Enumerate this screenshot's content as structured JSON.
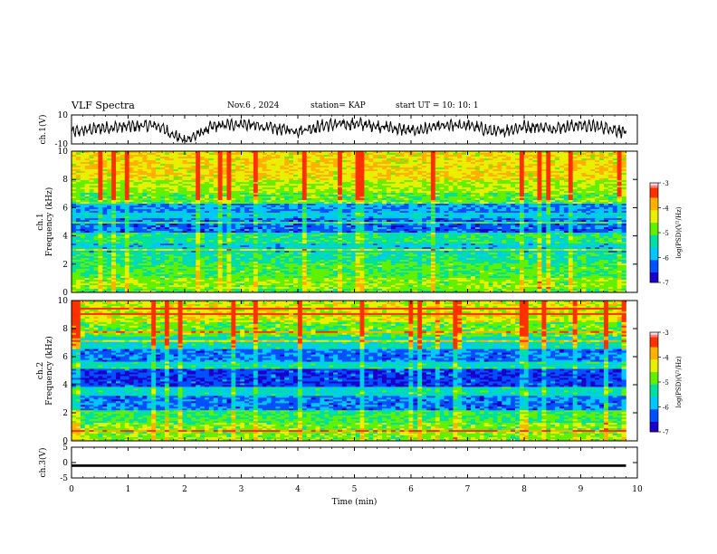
{
  "header": {
    "title": "VLF Spectra",
    "date": "Nov.6 , 2024",
    "station": "station= KAP",
    "start": "start UT = 10: 10: 1"
  },
  "colors": {
    "colormap": [
      "#1a00c8",
      "#0050ff",
      "#00c8ff",
      "#00e0a0",
      "#60f000",
      "#e8f000",
      "#ffb000",
      "#ff3000",
      "#ffffff"
    ],
    "trace": "#000000"
  },
  "chart_data": [
    {
      "id": "ch1-waveform",
      "type": "line",
      "ylabel": "ch.1(V)",
      "ylim": [
        -10,
        10
      ],
      "yticks": [
        "10",
        "-10"
      ],
      "x_range_min": [
        0,
        9.8
      ],
      "note_series": "waveform oscillating between approx. -6 and 8 V",
      "x": [
        0,
        0.5,
        1,
        1.5,
        2,
        2.5,
        3,
        3.5,
        4,
        4.5,
        5,
        5.5,
        6,
        6.5,
        7,
        7.5,
        8,
        8.5,
        9,
        9.5,
        9.8
      ],
      "y": [
        -2,
        1,
        2,
        3,
        -8,
        2,
        4,
        1,
        -1,
        3,
        4,
        2,
        -1,
        2,
        3,
        -2,
        2,
        1,
        3,
        1,
        -2
      ]
    },
    {
      "id": "ch1-spectrogram",
      "type": "heatmap",
      "ylabel": "ch.1\nFrequency (kHz)",
      "ylim": [
        0,
        10
      ],
      "yticks": [
        "0",
        "2",
        "4",
        "6",
        "8",
        "10"
      ],
      "colorbar": {
        "label": "log(PSD)(V²/Hz)",
        "range": [
          -7,
          -3
        ],
        "ticks": [
          "-3",
          "-4",
          "-5",
          "-6",
          "-7"
        ]
      },
      "band_levels": [
        [
          0.0,
          0.3,
          0.55
        ],
        [
          0.3,
          1.0,
          0.6
        ],
        [
          1.0,
          2.0,
          0.52
        ],
        [
          2.0,
          2.8,
          0.45
        ],
        [
          2.8,
          3.5,
          0.32
        ],
        [
          3.5,
          4.2,
          0.45
        ],
        [
          4.2,
          5.2,
          0.2
        ],
        [
          5.2,
          5.6,
          0.35
        ],
        [
          5.6,
          6.3,
          0.25
        ],
        [
          6.3,
          7.0,
          0.55
        ],
        [
          7.0,
          8.0,
          0.62
        ],
        [
          8.0,
          10.0,
          0.72
        ]
      ]
    },
    {
      "id": "ch2-spectrogram",
      "type": "heatmap",
      "ylabel": "ch.2\nFrequency (kHz)",
      "ylim": [
        0,
        10
      ],
      "yticks": [
        "0",
        "2",
        "4",
        "6",
        "8",
        "10"
      ],
      "colorbar": {
        "label": "log(PSD)(V²/Hz)",
        "range": [
          -7,
          -3
        ],
        "ticks": [
          "-3",
          "-4",
          "-5",
          "-6",
          "-7"
        ]
      },
      "band_levels": [
        [
          0.0,
          0.3,
          0.6
        ],
        [
          0.3,
          1.3,
          0.58
        ],
        [
          1.3,
          2.2,
          0.5
        ],
        [
          2.2,
          3.2,
          0.22
        ],
        [
          3.2,
          3.8,
          0.4
        ],
        [
          3.8,
          5.2,
          0.15
        ],
        [
          5.2,
          5.7,
          0.4
        ],
        [
          5.7,
          6.5,
          0.22
        ],
        [
          6.5,
          7.5,
          0.4
        ],
        [
          7.5,
          8.5,
          0.55
        ],
        [
          8.5,
          10.0,
          0.68
        ]
      ]
    },
    {
      "id": "ch3-waveform",
      "type": "line",
      "ylabel": "ch.3(V)",
      "ylim": [
        -5,
        5
      ],
      "yticks": [
        "5",
        "0",
        "-5"
      ],
      "x": [
        0,
        9.8
      ],
      "y_band": [
        -1.4,
        -0.6
      ]
    }
  ],
  "xaxis": {
    "label": "Time (min)",
    "range": [
      0,
      10
    ],
    "ticks": [
      "0",
      "1",
      "2",
      "3",
      "4",
      "5",
      "6",
      "7",
      "8",
      "9",
      "10"
    ]
  }
}
